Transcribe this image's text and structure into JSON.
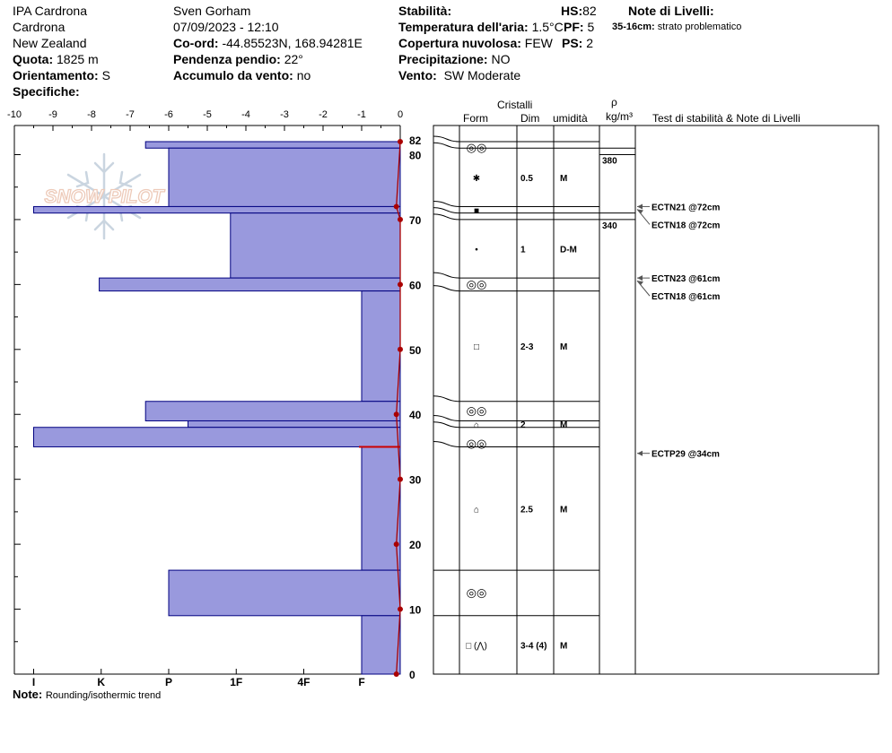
{
  "header": {
    "location_line1": "IPA Cardrona",
    "location_line2": "Cardrona",
    "location_line3": "New Zealand",
    "observer": "Sven Gorham",
    "datetime": "07/09/2023 - 12:10",
    "coord_label": "Co-ord:",
    "coord_value": "-44.85523N, 168.94281E",
    "elevation_label": "Quota:",
    "elevation_value": "1825 m",
    "slope_label": "Pendenza pendio:",
    "slope_value": "22°",
    "aspect_label": "Orientamento:",
    "aspect_value": "S",
    "wind_loading_label": "Accumulo da vento:",
    "wind_loading_value": "no",
    "specifics_label": "Specifiche:",
    "stability_label": "Stabilità:",
    "air_temp_label": "Temperatura dell'aria:",
    "air_temp_value": "1.5°C",
    "cloud_label": "Copertura nuvolosa:",
    "cloud_value": "FEW",
    "precip_label": "Precipitazione:",
    "precip_value": "NO",
    "wind_label": "Vento:",
    "wind_value": "SW Moderate",
    "hs_label": "HS:",
    "hs_value": "82",
    "pf_label": "PF:",
    "pf_value": "5",
    "ps_label": "PS:",
    "ps_value": "2",
    "layer_notes_label": "Note di Livelli:",
    "layer_note_depth": "35-16cm:",
    "layer_note_text": "strato problematico",
    "note_label": "Note:",
    "note_value": "Rounding/isothermic trend"
  },
  "watermark": "SNOW PILOT",
  "table_header": {
    "crystals": "Cristalli",
    "form": "Form",
    "size": "Dim",
    "moisture": "umidità",
    "rho": "ρ",
    "density_unit": "kg/m³",
    "tests": "Test di stabilità & Note di Livelli"
  },
  "chart_data": {
    "type": "snow_profile",
    "temp_axis": {
      "min": -10,
      "max": 0,
      "ticks": [
        "-10",
        "-9",
        "-8",
        "-7",
        "-6",
        "-5",
        "-4",
        "-3",
        "-2",
        "-1",
        "0"
      ]
    },
    "hardness_axis": {
      "labels": [
        "I",
        "K",
        "P",
        "1F",
        "4F",
        "F"
      ],
      "values": [
        9.5,
        7.75,
        6,
        4.25,
        2.5,
        1
      ]
    },
    "depth_axis": {
      "min": 0,
      "max": 82,
      "ticks": [
        0,
        10,
        20,
        30,
        40,
        50,
        60,
        70,
        80,
        82
      ]
    },
    "hardness_layers": [
      {
        "top": 82,
        "bottom": 81,
        "hardness": 6.6
      },
      {
        "top": 81,
        "bottom": 72,
        "hardness": 6
      },
      {
        "top": 72,
        "bottom": 71,
        "hardness": 9.5
      },
      {
        "top": 71,
        "bottom": 61,
        "hardness": 4.4
      },
      {
        "top": 61,
        "bottom": 59,
        "hardness": 7.8
      },
      {
        "top": 59,
        "bottom": 42,
        "hardness": 1
      },
      {
        "top": 42,
        "bottom": 39,
        "hardness": 6.6
      },
      {
        "top": 39,
        "bottom": 38,
        "hardness": 5.5
      },
      {
        "top": 38,
        "bottom": 35,
        "hardness": 9.5
      },
      {
        "top": 35,
        "bottom": 16,
        "hardness": 1
      },
      {
        "top": 16,
        "bottom": 9,
        "hardness": 6
      },
      {
        "top": 9,
        "bottom": 0,
        "hardness": 1
      }
    ],
    "weak_layer_depth": 35,
    "temperature_profile": [
      {
        "depth": 82,
        "temp": 0
      },
      {
        "depth": 72,
        "temp": -0.1
      },
      {
        "depth": 70,
        "temp": 0
      },
      {
        "depth": 60,
        "temp": 0
      },
      {
        "depth": 50,
        "temp": 0
      },
      {
        "depth": 40,
        "temp": -0.1
      },
      {
        "depth": 30,
        "temp": 0
      },
      {
        "depth": 20,
        "temp": -0.1
      },
      {
        "depth": 10,
        "temp": 0
      },
      {
        "depth": 0,
        "temp": -0.1
      }
    ],
    "grid_boundaries": [
      82,
      81,
      72,
      71,
      70,
      61,
      59,
      42,
      39,
      38,
      35,
      16,
      9
    ],
    "crystal_layers": [
      {
        "depth": 81,
        "form": "◎◎",
        "size": "",
        "moisture": ""
      },
      {
        "depth": 76.5,
        "form": "✱",
        "size": "0.5",
        "moisture": "M"
      },
      {
        "depth": 71.5,
        "form": "■",
        "size": "",
        "moisture": ""
      },
      {
        "depth": 65.5,
        "form": "•",
        "size": "1",
        "moisture": "D-M"
      },
      {
        "depth": 60,
        "form": "◎◎",
        "size": "",
        "moisture": ""
      },
      {
        "depth": 50.5,
        "form": "□",
        "size": "2-3",
        "moisture": "M"
      },
      {
        "depth": 40.5,
        "form": "◎◎",
        "size": "",
        "moisture": ""
      },
      {
        "depth": 38.5,
        "form": "⌂",
        "size": "2",
        "moisture": "M"
      },
      {
        "depth": 35.5,
        "form": "◎◎",
        "size": "",
        "moisture": ""
      },
      {
        "depth": 25.5,
        "form": "⌂",
        "size": "2.5",
        "moisture": "M"
      },
      {
        "depth": 12.5,
        "form": "◎◎",
        "size": "",
        "moisture": ""
      },
      {
        "depth": 4.5,
        "form": "□ (⋀)",
        "size": "3-4 (4)",
        "moisture": "M"
      }
    ],
    "densities": [
      {
        "top": 81,
        "bottom": 80,
        "value": "380"
      },
      {
        "top": 71,
        "bottom": 70,
        "value": "340"
      }
    ],
    "stability_tests": [
      {
        "depth": 72,
        "label": "ECTN21 @72cm"
      },
      {
        "depth": 72,
        "label": "ECTN18 @72cm"
      },
      {
        "depth": 61,
        "label": "ECTN23 @61cm"
      },
      {
        "depth": 61,
        "label": "ECTN18 @61cm"
      },
      {
        "depth": 34,
        "label": "ECTP29 @34cm"
      }
    ],
    "colors": {
      "bar_fill": "#9999dd",
      "bar_stroke": "#000080",
      "temperature": "#aa0000"
    }
  }
}
